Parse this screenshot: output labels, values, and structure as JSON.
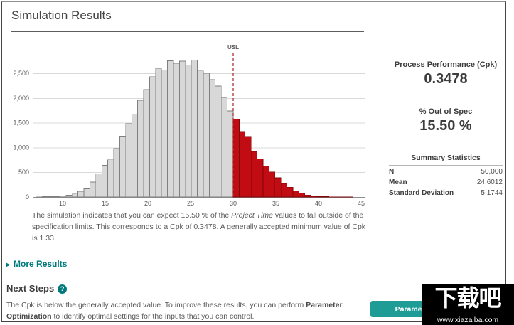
{
  "header": {
    "title": "Simulation Results"
  },
  "chart_data": {
    "type": "histogram",
    "title": "",
    "xlabel": "",
    "ylabel": "",
    "x_ticks": [
      10,
      15,
      20,
      25,
      30,
      35,
      40,
      45
    ],
    "x_tick_labels": [
      "10",
      "15",
      "20",
      "25",
      "30",
      "35",
      "40",
      "45"
    ],
    "y_ticks": [
      0,
      500,
      1000,
      1500,
      2000,
      2500
    ],
    "y_tick_labels": [
      "0",
      "500",
      "1,000",
      "1,500",
      "2,000",
      "2,500"
    ],
    "xlim": [
      6.5,
      46.5
    ],
    "ylim": [
      0,
      2900
    ],
    "grid": true,
    "bin_width": 0.7,
    "usl": {
      "label": "USL",
      "value": 30
    },
    "series": [
      {
        "name": "within-spec",
        "first_bin": 6.9,
        "fill": "#d8d8d8",
        "stroke": "#7f7f7f",
        "values": [
          5,
          7,
          10,
          14,
          20,
          35,
          60,
          110,
          165,
          300,
          470,
          640,
          750,
          980,
          1230,
          1480,
          1670,
          1950,
          2170,
          2430,
          2600,
          2570,
          2750,
          2700,
          2745,
          2660,
          2770,
          2545,
          2500,
          2370,
          2240,
          2012,
          1740
        ]
      },
      {
        "name": "out-of-spec",
        "first_bin": 30.0,
        "fill": "#c00c12",
        "stroke": "#7e0608",
        "values": [
          1576,
          1322,
          1226,
          915,
          772,
          628,
          507,
          388,
          269,
          197,
          125,
          76,
          40,
          22,
          12,
          7,
          4,
          2,
          1,
          1
        ]
      }
    ],
    "colors": {
      "grid": "#d9d9d9",
      "axis": "#8c8c8c",
      "tick_text": "#595959",
      "usl": "#b03030"
    }
  },
  "metrics": {
    "cpk_label": "Process Performance (Cpk)",
    "cpk_value": "0.3478",
    "oos_label": "% Out of Spec",
    "oos_value": "15.50 %"
  },
  "summary": {
    "title": "Summary Statistics",
    "rows": [
      {
        "label": "N",
        "value": "50,000"
      },
      {
        "label": "Mean",
        "value": "24.6012"
      },
      {
        "label": "Standard Deviation",
        "value": "5.1744"
      }
    ]
  },
  "caption": {
    "part1": "The simulation indicates that you can expect 15.50 % of the ",
    "italic": "Project Time",
    "part2": " values to fall outside of the specification limits. This corresponds to a Cpk of 0.3478. A generally accepted minimum value of Cpk is 1.33."
  },
  "more_results": {
    "arrow": "▸",
    "label": "More Results"
  },
  "next_steps": {
    "title": "Next Steps",
    "help_icon": "?",
    "body_part1": "The Cpk is below the generally accepted value. To improve these results, you can perform ",
    "body_bold": "Parameter Optimization",
    "body_part2": " to identify optimal settings for the inputs that you can control."
  },
  "actions": {
    "parameter_optimization_label": "Parameter Optimization"
  },
  "watermark": {
    "text": "下载吧",
    "url": "www.xiazaiba.com"
  },
  "colors": {
    "teal": "#00797d",
    "button_teal": "#1f9c96",
    "heading": "#3d3d3d",
    "body_text": "#595959"
  }
}
